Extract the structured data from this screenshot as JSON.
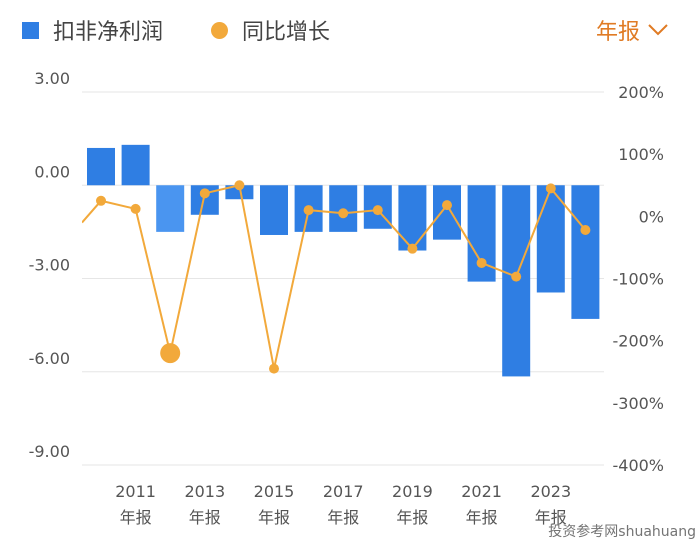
{
  "legend": {
    "bar_label": "扣非净利润",
    "line_label": "同比增长"
  },
  "period_selector": {
    "label": "年报"
  },
  "watermark": "投资参考网shuahuang",
  "colors": {
    "bar": "#2f7ee3",
    "bar_highlight": "#4a95f0",
    "line": "#f2a93b",
    "period": "#e07b24",
    "grid": "#e6e6e6"
  },
  "chart_data": {
    "type": "bar",
    "categories": [
      "2010",
      "2011",
      "2012",
      "2013",
      "2014",
      "2015",
      "2016",
      "2017",
      "2018",
      "2019",
      "2020",
      "2021",
      "2022",
      "2023",
      "2024"
    ],
    "x_tick_labels": [
      {
        "year": "2011",
        "sub": "年报"
      },
      {
        "year": "2013",
        "sub": "年报"
      },
      {
        "year": "2015",
        "sub": "年报"
      },
      {
        "year": "2017",
        "sub": "年报"
      },
      {
        "year": "2019",
        "sub": "年报"
      },
      {
        "year": "2021",
        "sub": "年报"
      },
      {
        "year": "2023",
        "sub": "年报"
      }
    ],
    "series": [
      {
        "name": "扣非净利润",
        "type": "bar",
        "axis": "left",
        "values": [
          1.2,
          1.3,
          -1.5,
          -0.95,
          -0.45,
          -1.6,
          -1.5,
          -1.5,
          -1.4,
          -2.1,
          -1.75,
          -3.1,
          -6.15,
          -3.45,
          -4.3
        ]
      },
      {
        "name": "同比增长",
        "type": "line",
        "axis": "right",
        "values": [
          25,
          12,
          -220,
          37,
          50,
          -245,
          10,
          5,
          10,
          -52,
          18,
          -75,
          -97,
          45,
          -22
        ],
        "highlight_index": 2
      }
    ],
    "y_left": {
      "ticks": [
        "3.00",
        "0.00",
        "-3.00",
        "-6.00",
        "-9.00"
      ],
      "min": -9,
      "max": 3
    },
    "y_right": {
      "ticks": [
        "200%",
        "100%",
        "0%",
        "-100%",
        "-200%",
        "-300%",
        "-400%"
      ],
      "min": -400,
      "max": 200
    },
    "grid": true,
    "legend_position": "top-left"
  }
}
